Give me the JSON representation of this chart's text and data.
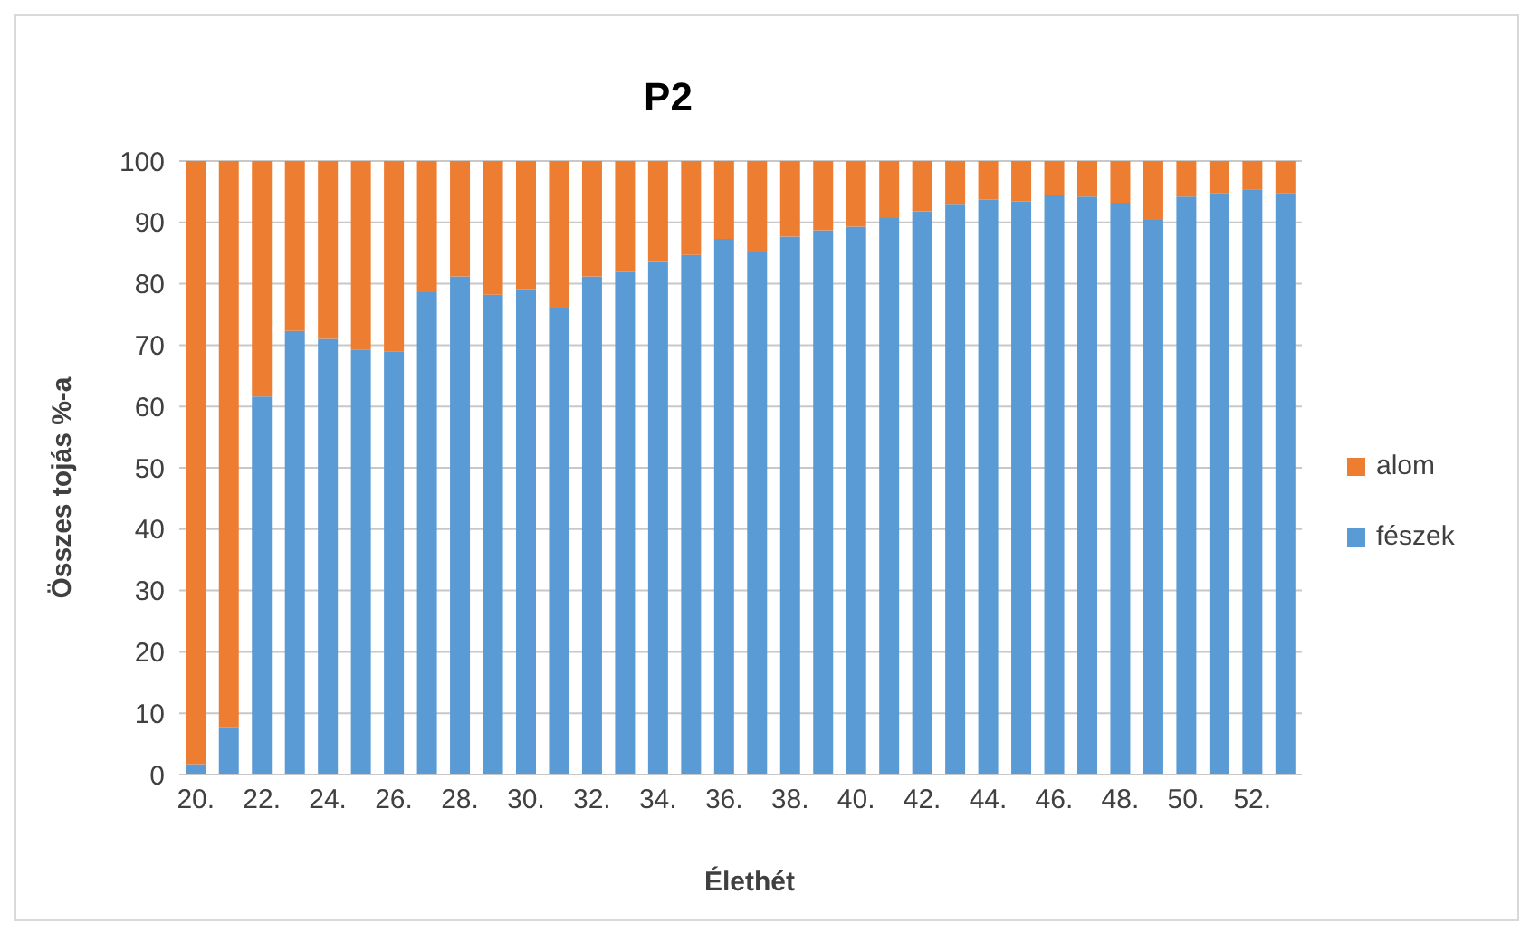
{
  "chart_data": {
    "type": "bar",
    "title": "P2",
    "xlabel": "Élethét",
    "ylabel": "Összes tojás %-a",
    "categories": [
      "20.",
      null,
      "22.",
      null,
      "24.",
      null,
      "26.",
      null,
      "28.",
      null,
      "30.",
      null,
      "32.",
      null,
      "34.",
      null,
      "36.",
      null,
      "38.",
      null,
      "40.",
      null,
      "42.",
      null,
      "44.",
      null,
      "46.",
      null,
      "48.",
      null,
      "50.",
      null,
      "52.",
      null
    ],
    "series": [
      {
        "name": "fészek",
        "color": "#5b9bd5",
        "values": [
          1.7,
          7.7,
          61.6,
          72.3,
          71.0,
          69.3,
          69.0,
          78.6,
          81.2,
          78.2,
          79.1,
          76.1,
          81.2,
          81.9,
          83.7,
          84.7,
          87.3,
          85.2,
          87.7,
          88.7,
          89.3,
          90.7,
          91.8,
          92.9,
          93.7,
          93.4,
          94.4,
          94.2,
          93.2,
          90.4,
          94.2,
          94.8,
          95.3,
          94.8
        ]
      },
      {
        "name": "alom",
        "color": "#ed7d31",
        "values": [
          98.3,
          92.3,
          38.4,
          27.7,
          29.0,
          30.7,
          31.0,
          21.4,
          18.8,
          21.8,
          20.9,
          23.9,
          18.8,
          18.1,
          16.3,
          15.3,
          12.7,
          14.8,
          12.3,
          11.3,
          10.7,
          9.3,
          8.2,
          7.1,
          6.3,
          6.6,
          5.6,
          5.8,
          6.8,
          9.6,
          5.8,
          5.2,
          4.7,
          5.2
        ]
      }
    ],
    "stacked": true,
    "ylim": [
      0,
      100
    ],
    "yticks": [
      0,
      10,
      20,
      30,
      40,
      50,
      60,
      70,
      80,
      90,
      100
    ],
    "grid": "y",
    "legend": "right"
  }
}
